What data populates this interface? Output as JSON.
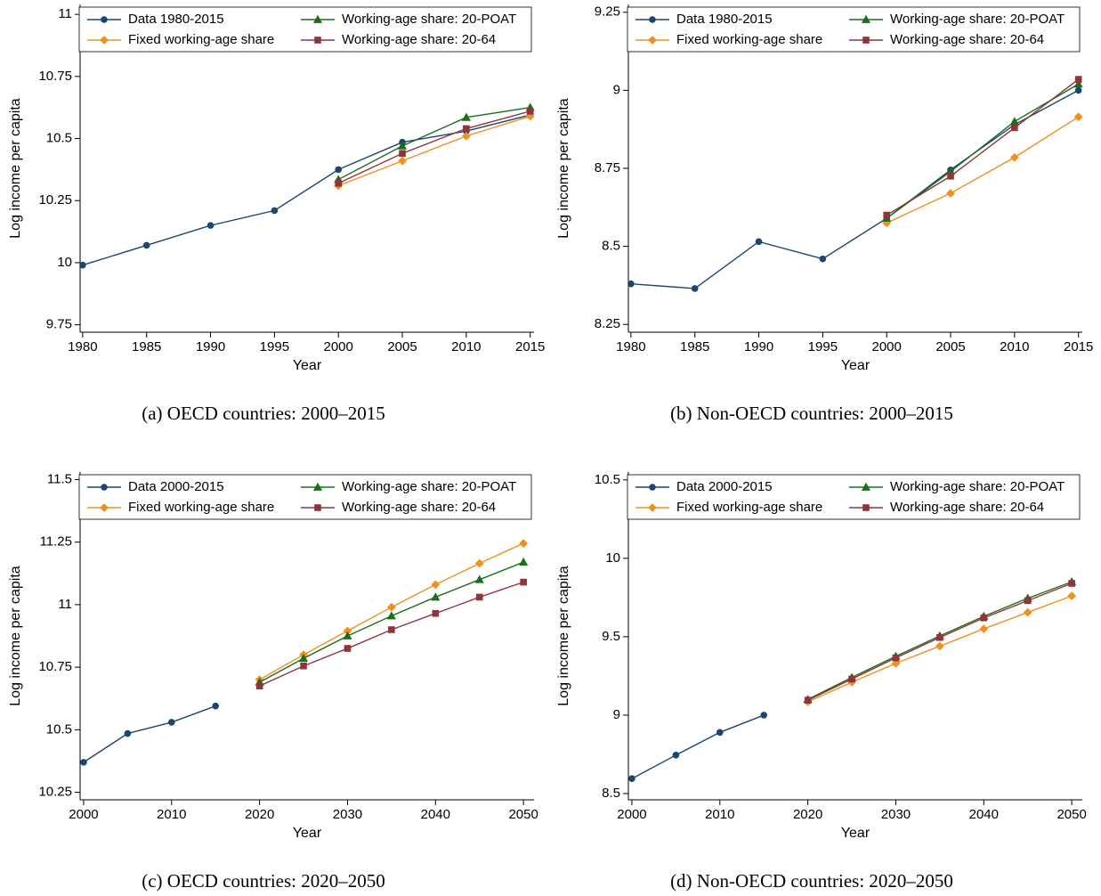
{
  "chart_data": [
    {
      "type": "line",
      "caption": "(a) OECD countries: 2000–2015",
      "xlabel": "Year",
      "ylabel": "Log income per capita",
      "x": [
        1980,
        1985,
        1990,
        1995,
        2000,
        2005,
        2010,
        2015
      ],
      "xlim": [
        1979.8,
        2015.3
      ],
      "xticks": [
        1980,
        1985,
        1990,
        1995,
        2000,
        2005,
        2010,
        2015
      ],
      "ylim": [
        9.72,
        11.04
      ],
      "yticks": [
        9.75,
        10,
        10.25,
        10.5,
        10.75,
        11
      ],
      "legend": "top",
      "series": [
        {
          "name": "Data 1980-2015",
          "color": "#1a476f",
          "marker": "circle",
          "values": [
            9.99,
            10.07,
            10.15,
            10.21,
            10.375,
            10.485,
            10.53,
            10.595
          ]
        },
        {
          "name": "Fixed working-age share",
          "color": "#f0901e",
          "marker": "diamond",
          "values": [
            null,
            null,
            null,
            null,
            10.31,
            10.41,
            10.51,
            10.59
          ]
        },
        {
          "name": "Working-age share: 20-POAT",
          "color": "#1b6e1b",
          "marker": "triangle",
          "values": [
            null,
            null,
            null,
            null,
            10.335,
            10.47,
            10.585,
            10.625
          ]
        },
        {
          "name": "Working-age share: 20-64",
          "color": "#90353b",
          "marker": "square",
          "values": [
            null,
            null,
            null,
            null,
            10.32,
            10.44,
            10.54,
            10.61
          ]
        }
      ]
    },
    {
      "type": "line",
      "caption": "(b) Non-OECD countries: 2000–2015",
      "xlabel": "Year",
      "ylabel": "Log income per capita",
      "x": [
        1980,
        1985,
        1990,
        1995,
        2000,
        2005,
        2010,
        2015
      ],
      "xlim": [
        1979.8,
        2015.3
      ],
      "xticks": [
        1980,
        1985,
        1990,
        1995,
        2000,
        2005,
        2010,
        2015
      ],
      "ylim": [
        8.225,
        9.275
      ],
      "yticks": [
        8.25,
        8.5,
        8.75,
        9,
        9.25
      ],
      "legend": "top",
      "series": [
        {
          "name": "Data 1980-2015",
          "color": "#1a476f",
          "marker": "circle",
          "values": [
            8.38,
            8.365,
            8.515,
            8.46,
            8.59,
            8.745,
            8.89,
            9.0
          ]
        },
        {
          "name": "Fixed working-age share",
          "color": "#f0901e",
          "marker": "diamond",
          "values": [
            null,
            null,
            null,
            null,
            8.575,
            8.67,
            8.785,
            8.915
          ]
        },
        {
          "name": "Working-age share: 20-POAT",
          "color": "#1b6e1b",
          "marker": "triangle",
          "values": [
            null,
            null,
            null,
            null,
            8.59,
            8.74,
            8.9,
            9.02
          ]
        },
        {
          "name": "Working-age share: 20-64",
          "color": "#90353b",
          "marker": "square",
          "values": [
            null,
            null,
            null,
            null,
            8.6,
            8.725,
            8.88,
            9.035
          ]
        }
      ]
    },
    {
      "type": "line",
      "caption": "(c) OECD countries: 2020–2050",
      "xlabel": "Year",
      "ylabel": "Log income per capita",
      "x": [
        2000,
        2005,
        2010,
        2015,
        2020,
        2025,
        2030,
        2035,
        2040,
        2045,
        2050
      ],
      "xlim": [
        1999.6,
        2051.2
      ],
      "xticks": [
        2000,
        2010,
        2020,
        2030,
        2040,
        2050
      ],
      "ylim": [
        10.22,
        11.53
      ],
      "yticks": [
        10.25,
        10.5,
        10.75,
        11,
        11.25,
        11.5
      ],
      "legend": "top",
      "series": [
        {
          "name": "Data 2000-2015",
          "color": "#1a476f",
          "marker": "circle",
          "values": [
            10.37,
            10.485,
            10.53,
            10.595,
            null,
            null,
            null,
            null,
            null,
            null,
            null
          ]
        },
        {
          "name": "Fixed working-age share",
          "color": "#f0901e",
          "marker": "diamond",
          "values": [
            null,
            null,
            null,
            null,
            10.7,
            10.8,
            10.895,
            10.99,
            11.08,
            11.165,
            11.245
          ]
        },
        {
          "name": "Working-age share: 20-POAT",
          "color": "#1b6e1b",
          "marker": "triangle",
          "values": [
            null,
            null,
            null,
            null,
            10.69,
            10.785,
            10.875,
            10.955,
            11.03,
            11.1,
            11.17
          ]
        },
        {
          "name": "Working-age share: 20-64",
          "color": "#90353b",
          "marker": "square",
          "values": [
            null,
            null,
            null,
            null,
            10.675,
            10.755,
            10.825,
            10.9,
            10.965,
            11.03,
            11.09
          ]
        }
      ]
    },
    {
      "type": "line",
      "caption": "(d) Non-OECD countries: 2020–2050",
      "xlabel": "Year",
      "ylabel": "Log income per capita",
      "x": [
        2000,
        2005,
        2010,
        2015,
        2020,
        2025,
        2030,
        2035,
        2040,
        2045,
        2050
      ],
      "xlim": [
        1999.6,
        2051.2
      ],
      "xticks": [
        2000,
        2010,
        2020,
        2030,
        2040,
        2050
      ],
      "ylim": [
        8.46,
        10.55
      ],
      "yticks": [
        8.5,
        9,
        9.5,
        10,
        10.5
      ],
      "legend": "top",
      "series": [
        {
          "name": "Data 2000-2015",
          "color": "#1a476f",
          "marker": "circle",
          "values": [
            8.595,
            8.745,
            8.89,
            9.0,
            null,
            null,
            null,
            null,
            null,
            null,
            null
          ]
        },
        {
          "name": "Fixed working-age share",
          "color": "#f0901e",
          "marker": "diamond",
          "values": [
            null,
            null,
            null,
            null,
            9.085,
            9.21,
            9.33,
            9.44,
            9.55,
            9.655,
            9.76
          ]
        },
        {
          "name": "Working-age share: 20-POAT",
          "color": "#1b6e1b",
          "marker": "triangle",
          "values": [
            null,
            null,
            null,
            null,
            9.1,
            9.24,
            9.375,
            9.505,
            9.63,
            9.745,
            9.85
          ]
        },
        {
          "name": "Working-age share: 20-64",
          "color": "#90353b",
          "marker": "square",
          "values": [
            null,
            null,
            null,
            null,
            9.095,
            9.23,
            9.365,
            9.495,
            9.62,
            9.73,
            9.84
          ]
        }
      ]
    }
  ]
}
